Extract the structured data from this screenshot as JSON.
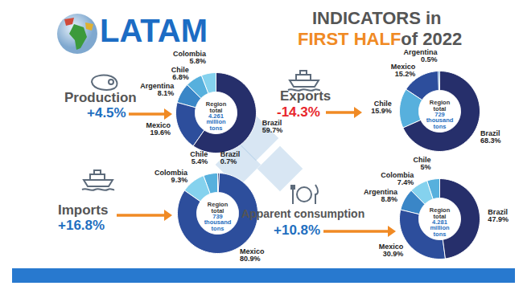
{
  "header": {
    "title": "LATAM",
    "subtitle": [
      "INDICATORS in",
      "FIRST HALF",
      "of 2022"
    ]
  },
  "chart_data": [
    {
      "type": "pie",
      "title": "Production",
      "change": {
        "value": 4.5,
        "label": "+4.5%"
      },
      "center_text": [
        "Region total",
        "4.261 million tons"
      ],
      "categories": [
        "Brazil",
        "Mexico",
        "Argentina",
        "Chile",
        "Colombia"
      ],
      "values": [
        59.7,
        19.6,
        8.1,
        6.8,
        5.8
      ],
      "value_labels": [
        "59.7%",
        "19.6%",
        "8.1%",
        "6.8%",
        "5.8%"
      ],
      "colors": [
        "#262f6b",
        "#2d4e9c",
        "#3a86c7",
        "#57b0dd",
        "#85d2ee"
      ],
      "data_labels": true
    },
    {
      "type": "pie",
      "title": "Exports",
      "change": {
        "value": -14.3,
        "label": "-14.3%"
      },
      "center_text": [
        "Region total",
        "729 thousand tons"
      ],
      "categories": [
        "Brazil",
        "Chile",
        "Mexico",
        "Argentina"
      ],
      "values": [
        68.3,
        15.9,
        15.2,
        0.5
      ],
      "value_labels": [
        "68.3%",
        "15.9%",
        "15.2%",
        "0.5%"
      ],
      "colors": [
        "#262f6b",
        "#57b0dd",
        "#2d4e9c",
        "#3a86c7"
      ],
      "data_labels": true
    },
    {
      "type": "pie",
      "title": "Imports",
      "change": {
        "value": 16.8,
        "label": "+16.8%"
      },
      "center_text": [
        "Region total",
        "739 thousand tons"
      ],
      "categories": [
        "Brazil",
        "Mexico",
        "Colombia",
        "Chile"
      ],
      "values": [
        0.7,
        80.9,
        9.3,
        5.4
      ],
      "value_labels": [
        "0.7%",
        "80.9%",
        "9.3%",
        "5.4%"
      ],
      "colors": [
        "#262f6b",
        "#2d4e9c",
        "#85d2ee",
        "#57b0dd"
      ],
      "data_labels": true
    },
    {
      "type": "pie",
      "title": "Apparent consumption",
      "change": {
        "value": 10.8,
        "label": "+10.8%"
      },
      "center_text": [
        "Region total",
        "4.281 million tons"
      ],
      "categories": [
        "Brazil",
        "Mexico",
        "Argentina",
        "Colombia",
        "Chile"
      ],
      "values": [
        47.9,
        30.9,
        8.8,
        7.4,
        5
      ],
      "value_labels": [
        "47.9%",
        "30.9%",
        "8.8%",
        "7.4%",
        "5%"
      ],
      "colors": [
        "#262f6b",
        "#2d4e9c",
        "#3a86c7",
        "#85d2ee",
        "#57b0dd"
      ],
      "data_labels": true
    }
  ]
}
